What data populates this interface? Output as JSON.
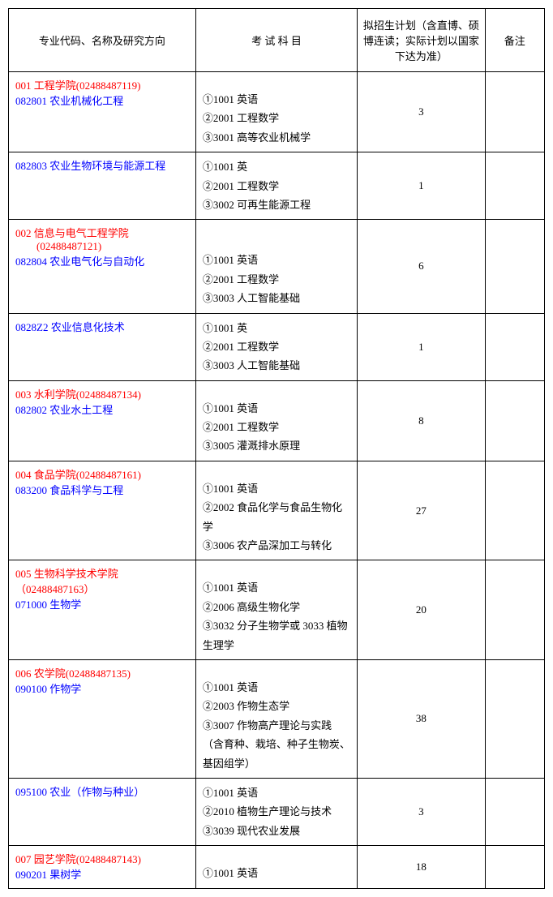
{
  "headers": {
    "col1": "专业代码、名称及研究方向",
    "col2": "考 试 科 目",
    "col3": "拟招生计划（含直博、硕博连读；实际计划以国家下达为准）",
    "col4": "备注"
  },
  "rows": [
    {
      "dept": "001 工程学院(02488487119)",
      "major": "082801 农业机械化工程",
      "exams": [
        "①1001 英语",
        "②2001 工程数学",
        "③3001 高等农业机械学"
      ],
      "plan": "3",
      "note": ""
    },
    {
      "dept": "",
      "major": "082803 农业生物环境与能源工程",
      "exams": [
        "①1001 英",
        "②2001 工程数学",
        "③3002 可再生能源工程"
      ],
      "plan": "1",
      "note": ""
    },
    {
      "dept": "002 信息与电气工程学院",
      "dept2": "(02488487121)",
      "major": "082804 农业电气化与自动化",
      "exams": [
        "①1001 英语",
        "②2001 工程数学",
        "③3003 人工智能基础"
      ],
      "plan": "6",
      "note": ""
    },
    {
      "dept": "",
      "major": "0828Z2 农业信息化技术",
      "exams": [
        "①1001 英",
        "②2001 工程数学",
        "③3003 人工智能基础"
      ],
      "plan": "1",
      "note": ""
    },
    {
      "dept": "003 水利学院(02488487134)",
      "major": "082802 农业水土工程",
      "exams": [
        "①1001 英语",
        "②2001 工程数学",
        "③3005 灌溉排水原理"
      ],
      "plan": "8",
      "note": ""
    },
    {
      "dept": "004 食品学院(02488487161)",
      "major": "083200 食品科学与工程",
      "exams": [
        "①1001 英语",
        "②2002 食品化学与食品生物化学",
        "③3006 农产品深加工与转化"
      ],
      "plan": "27",
      "note": ""
    },
    {
      "dept": "005 生物科学技术学院（02488487163）",
      "major": "071000 生物学",
      "exams": [
        "①1001 英语",
        "②2006 高级生物化学",
        "③3032 分子生物学或 3033 植物生理学"
      ],
      "plan": "20",
      "note": ""
    },
    {
      "dept": "006 农学院(02488487135)",
      "major": "090100 作物学",
      "exams": [
        "①1001 英语",
        "②2003 作物生态学",
        "③3007 作物高产理论与实践（含育种、栽培、种子生物炭、基因组学）"
      ],
      "plan": "38",
      "note": ""
    },
    {
      "dept": "",
      "major": "095100 农业（作物与种业）",
      "exams": [
        "①1001 英语",
        "②2010 植物生产理论与技术",
        "③3039 现代农业发展"
      ],
      "plan": "3",
      "note": ""
    },
    {
      "dept": "007 园艺学院(02488487143)",
      "major": "090201 果树学",
      "exams": [
        "①1001 英语"
      ],
      "plan": "18",
      "note": ""
    }
  ]
}
